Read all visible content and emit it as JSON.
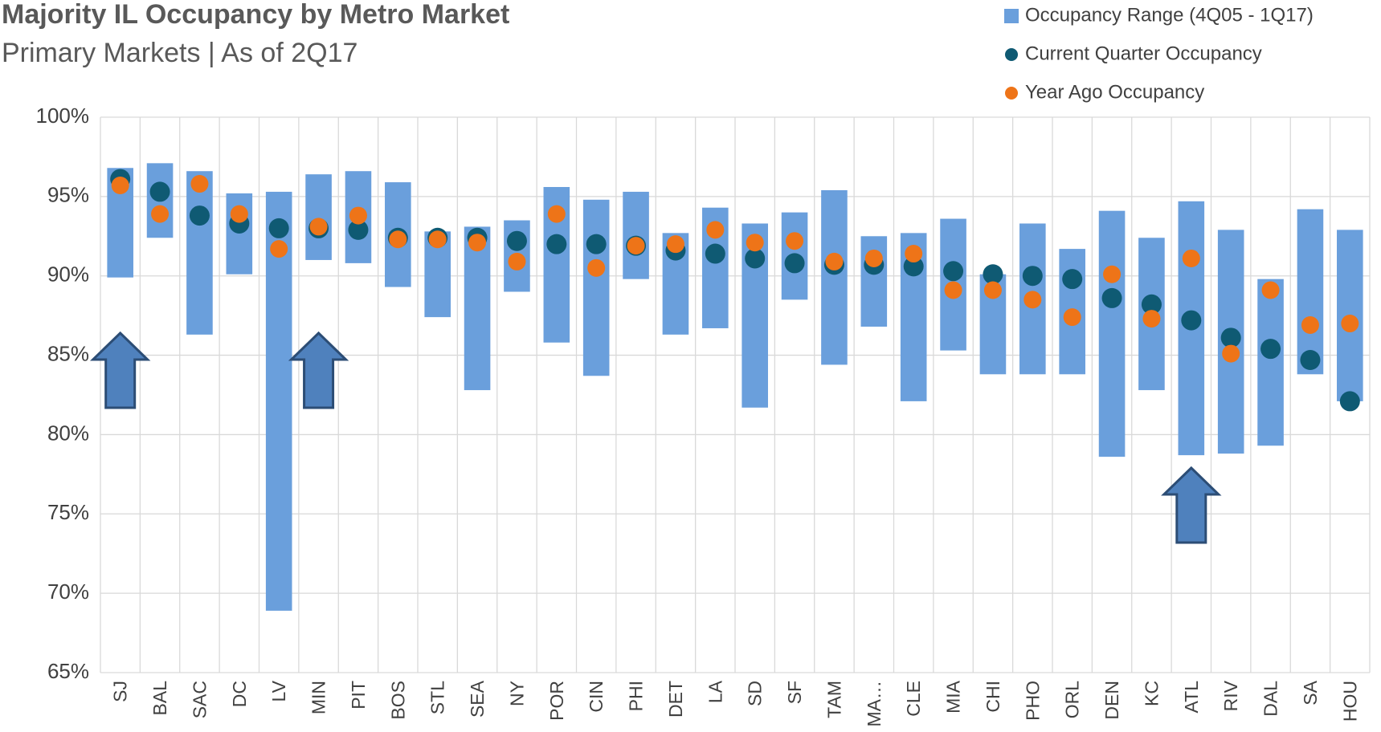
{
  "chart_data": {
    "type": "range-dot",
    "title": "Majority IL Occupancy by Metro Market",
    "subtitle": "Primary Markets | As of 2Q17",
    "categories": [
      "SJ",
      "BAL",
      "SAC",
      "DC",
      "LV",
      "MIN",
      "PIT",
      "BOS",
      "STL",
      "SEA",
      "NY",
      "POR",
      "CIN",
      "PHI",
      "DET",
      "LA",
      "SD",
      "SF",
      "TAM",
      "MA…",
      "CLE",
      "MIA",
      "CHI",
      "PHO",
      "ORL",
      "DEN",
      "KC",
      "ATL",
      "RIV",
      "DAL",
      "SA",
      "HOU"
    ],
    "series": [
      {
        "name": "Occupancy Range (4Q05 - 1Q17)",
        "color": "#6a9fdc",
        "values": [
          [
            89.9,
            96.8
          ],
          [
            92.4,
            97.1
          ],
          [
            86.3,
            96.6
          ],
          [
            90.1,
            95.2
          ],
          [
            68.9,
            95.3
          ],
          [
            91.0,
            96.4
          ],
          [
            90.8,
            96.6
          ],
          [
            89.3,
            95.9
          ],
          [
            87.4,
            92.8
          ],
          [
            82.8,
            93.1
          ],
          [
            89.0,
            93.5
          ],
          [
            85.8,
            95.6
          ],
          [
            83.7,
            94.8
          ],
          [
            89.8,
            95.3
          ],
          [
            86.3,
            92.7
          ],
          [
            86.7,
            94.3
          ],
          [
            81.7,
            93.3
          ],
          [
            88.5,
            94.0
          ],
          [
            84.4,
            95.4
          ],
          [
            86.8,
            92.5
          ],
          [
            82.1,
            92.7
          ],
          [
            85.3,
            93.6
          ],
          [
            83.8,
            90.1
          ],
          [
            83.8,
            93.3
          ],
          [
            83.8,
            91.7
          ],
          [
            78.6,
            94.1
          ],
          [
            82.8,
            92.4
          ],
          [
            78.7,
            94.7
          ],
          [
            78.8,
            92.9
          ],
          [
            79.3,
            89.8
          ],
          [
            83.8,
            94.2
          ],
          [
            82.1,
            92.9
          ]
        ]
      },
      {
        "name": "Current Quarter Occupancy",
        "color": "#0f5a73",
        "values": [
          96.1,
          95.3,
          93.8,
          93.3,
          93.0,
          93.0,
          92.9,
          92.4,
          92.4,
          92.4,
          92.2,
          92.0,
          92.0,
          91.9,
          91.6,
          91.4,
          91.1,
          90.8,
          90.7,
          90.7,
          90.6,
          90.3,
          90.1,
          90.0,
          89.8,
          88.6,
          88.2,
          87.2,
          86.1,
          85.4,
          84.7,
          82.1
        ]
      },
      {
        "name": "Year Ago Occupancy",
        "color": "#ee7418",
        "values": [
          95.7,
          93.9,
          95.8,
          93.9,
          91.7,
          93.1,
          93.8,
          92.3,
          92.3,
          92.1,
          90.9,
          93.9,
          90.5,
          91.9,
          92.0,
          92.9,
          92.1,
          92.2,
          90.9,
          91.1,
          91.4,
          89.1,
          89.1,
          88.5,
          87.4,
          90.1,
          87.3,
          91.1,
          85.1,
          89.1,
          86.9,
          87.0
        ]
      }
    ],
    "ylim": [
      65,
      100
    ],
    "yticks": [
      {
        "value": 65,
        "label": "65%"
      },
      {
        "value": 70,
        "label": "70%"
      },
      {
        "value": 75,
        "label": "75%"
      },
      {
        "value": 80,
        "label": "80%"
      },
      {
        "value": 85,
        "label": "85%"
      },
      {
        "value": 90,
        "label": "90%"
      },
      {
        "value": 95,
        "label": "95%"
      },
      {
        "value": 100,
        "label": "100%"
      }
    ],
    "grid": true
  }
}
